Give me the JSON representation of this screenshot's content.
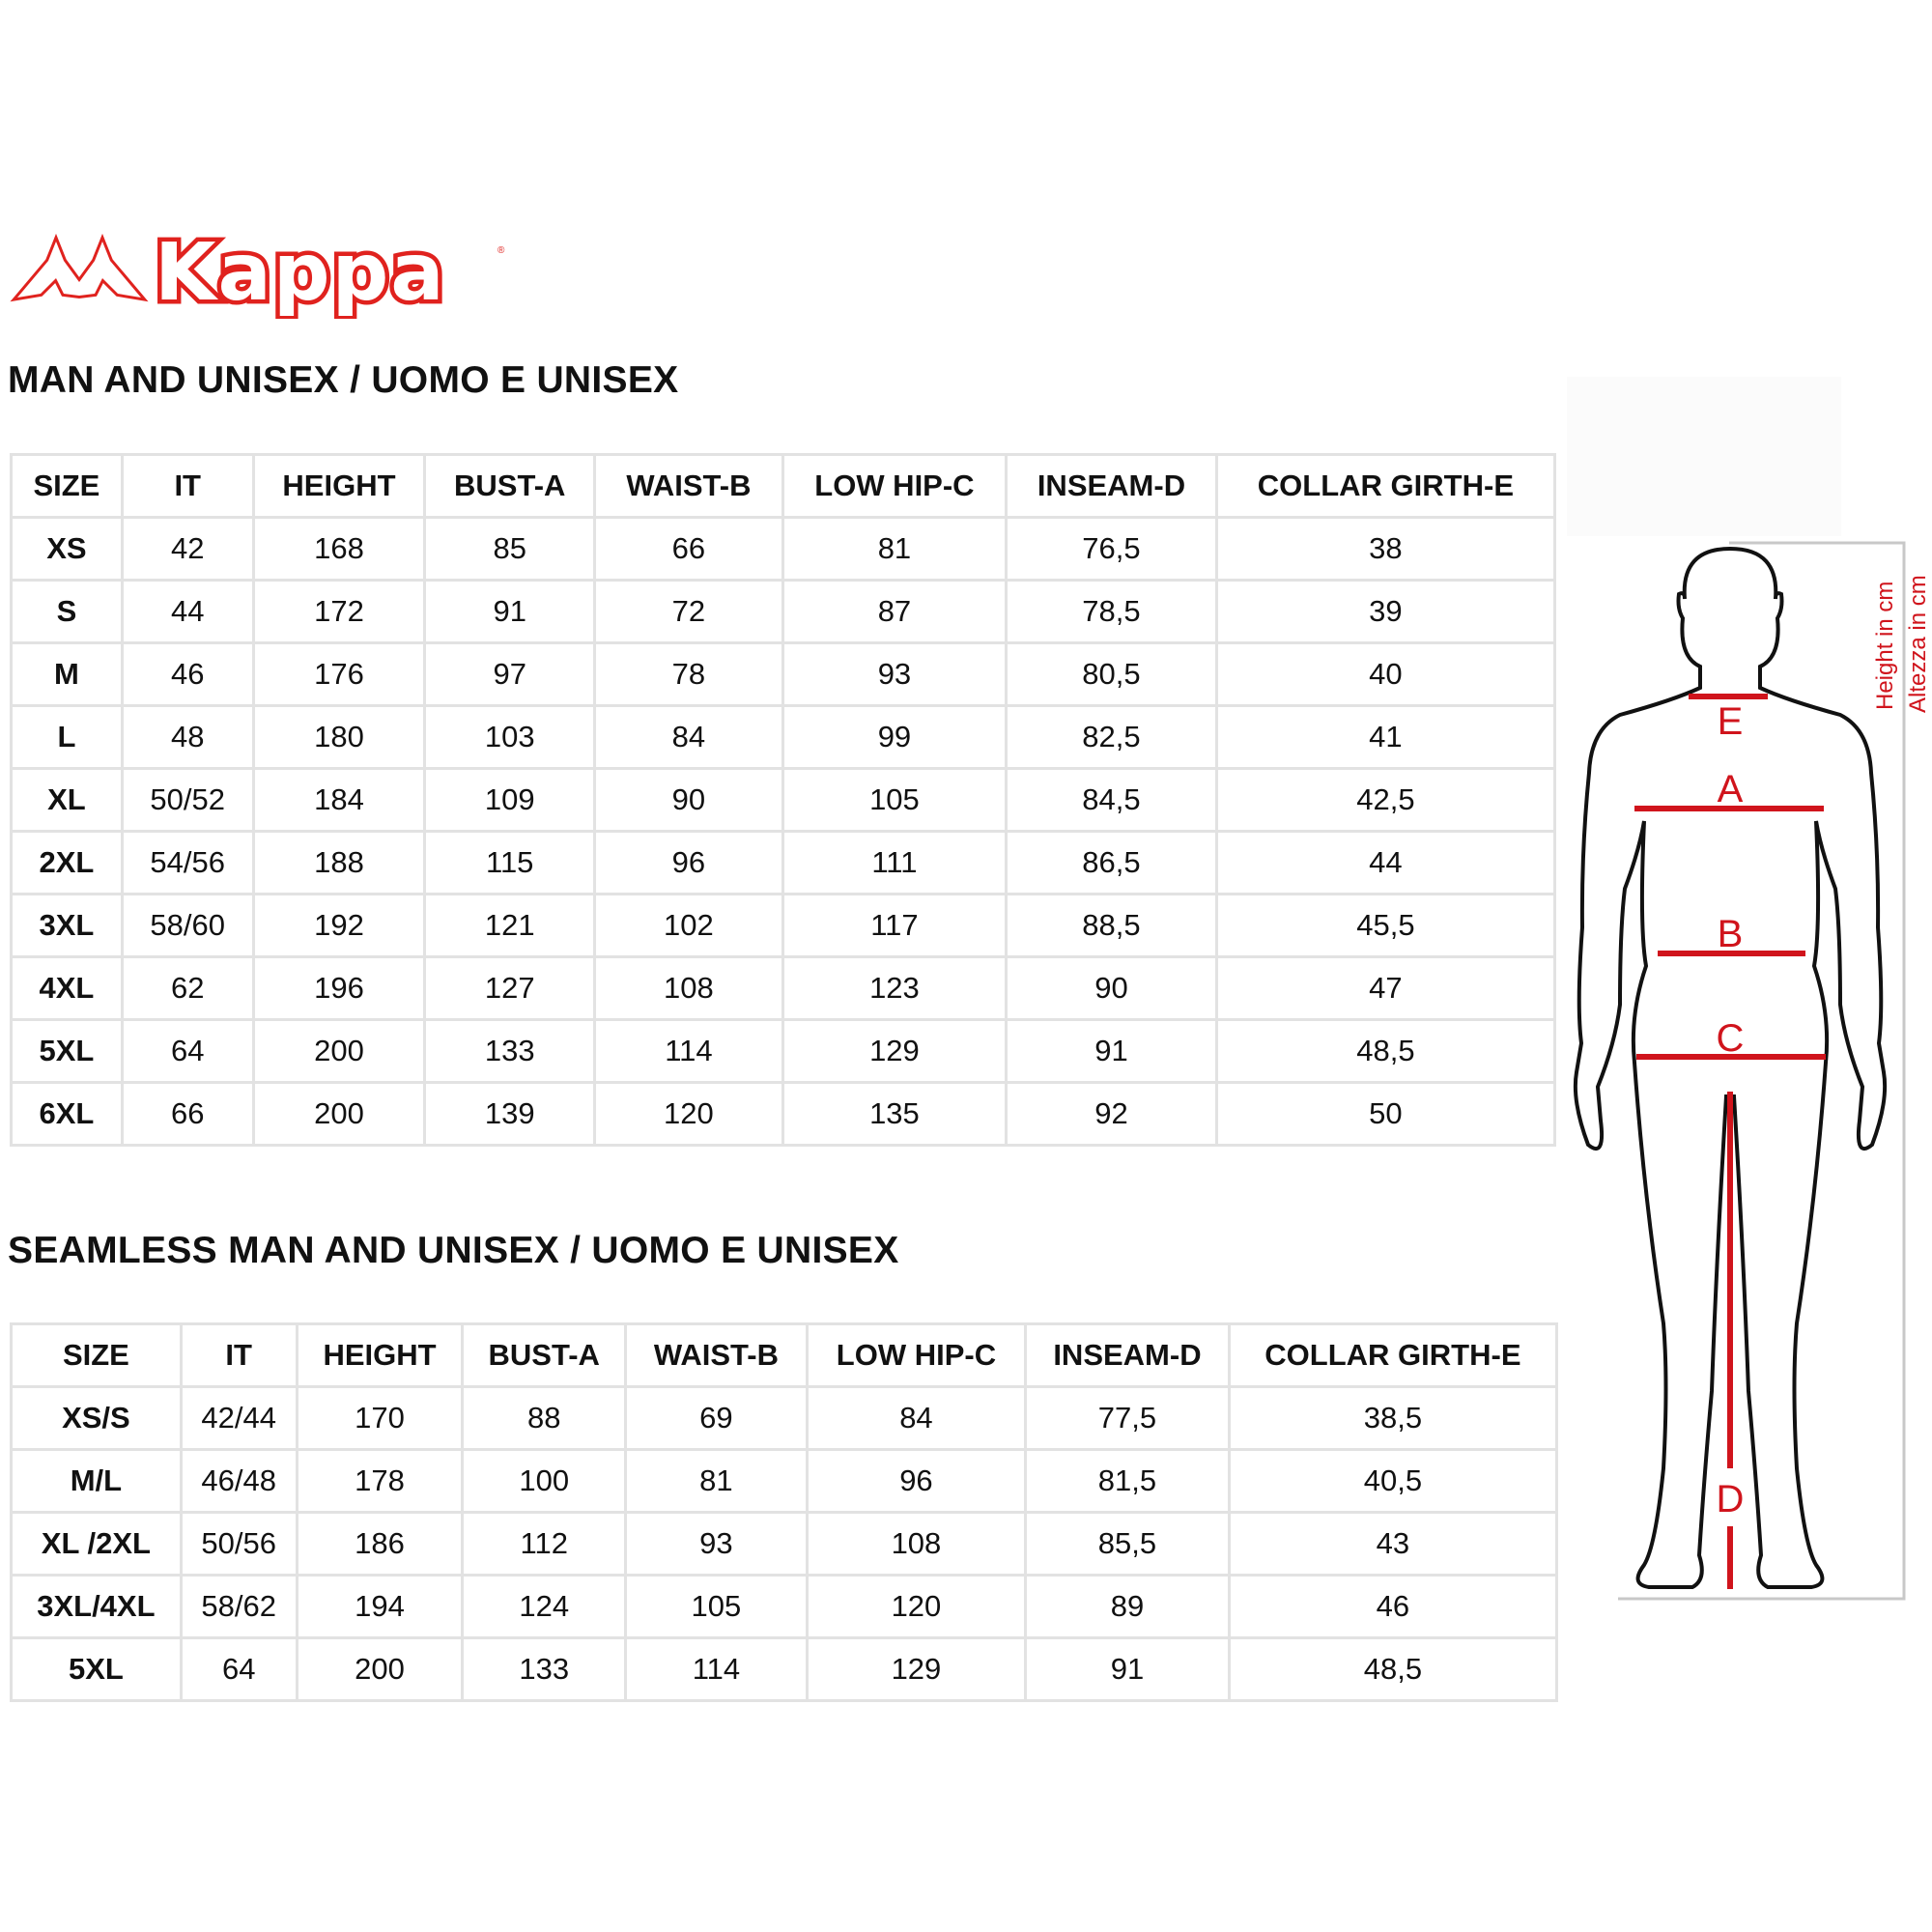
{
  "brand": {
    "name": "Kappa",
    "accent": "#e0221e"
  },
  "table1": {
    "title": "MAN AND UNISEX / UOMO E UNISEX",
    "headers": [
      "SIZE",
      "IT",
      "HEIGHT",
      "BUST-A",
      "WAIST-B",
      "LOW HIP-C",
      "INSEAM-D",
      "COLLAR GIRTH-E"
    ],
    "rows": [
      [
        "XS",
        "42",
        "168",
        "85",
        "66",
        "81",
        "76,5",
        "38"
      ],
      [
        "S",
        "44",
        "172",
        "91",
        "72",
        "87",
        "78,5",
        "39"
      ],
      [
        "M",
        "46",
        "176",
        "97",
        "78",
        "93",
        "80,5",
        "40"
      ],
      [
        "L",
        "48",
        "180",
        "103",
        "84",
        "99",
        "82,5",
        "41"
      ],
      [
        "XL",
        "50/52",
        "184",
        "109",
        "90",
        "105",
        "84,5",
        "42,5"
      ],
      [
        "2XL",
        "54/56",
        "188",
        "115",
        "96",
        "111",
        "86,5",
        "44"
      ],
      [
        "3XL",
        "58/60",
        "192",
        "121",
        "102",
        "117",
        "88,5",
        "45,5"
      ],
      [
        "4XL",
        "62",
        "196",
        "127",
        "108",
        "123",
        "90",
        "47"
      ],
      [
        "5XL",
        "64",
        "200",
        "133",
        "114",
        "129",
        "91",
        "48,5"
      ],
      [
        "6XL",
        "66",
        "200",
        "139",
        "120",
        "135",
        "92",
        "50"
      ]
    ]
  },
  "table2": {
    "title": "SEAMLESS MAN AND UNISEX / UOMO E UNISEX",
    "headers": [
      "SIZE",
      "IT",
      "HEIGHT",
      "BUST-A",
      "WAIST-B",
      "LOW HIP-C",
      "INSEAM-D",
      "COLLAR GIRTH-E"
    ],
    "rows": [
      [
        "XS/S",
        "42/44",
        "170",
        "88",
        "69",
        "84",
        "77,5",
        "38,5"
      ],
      [
        "M/L",
        "46/48",
        "178",
        "100",
        "81",
        "96",
        "81,5",
        "40,5"
      ],
      [
        "XL /2XL",
        "50/56",
        "186",
        "112",
        "93",
        "108",
        "85,5",
        "43"
      ],
      [
        "3XL/4XL",
        "58/62",
        "194",
        "124",
        "105",
        "120",
        "89",
        "46"
      ],
      [
        "5XL",
        "64",
        "200",
        "133",
        "114",
        "129",
        "91",
        "48,5"
      ]
    ]
  },
  "figure": {
    "labels": {
      "e": "E",
      "a": "A",
      "b": "B",
      "c": "C",
      "d": "D"
    },
    "height_label_en": "Height in cm",
    "height_label_it": "Altezza in cm",
    "measure_color": "#d0141c"
  }
}
